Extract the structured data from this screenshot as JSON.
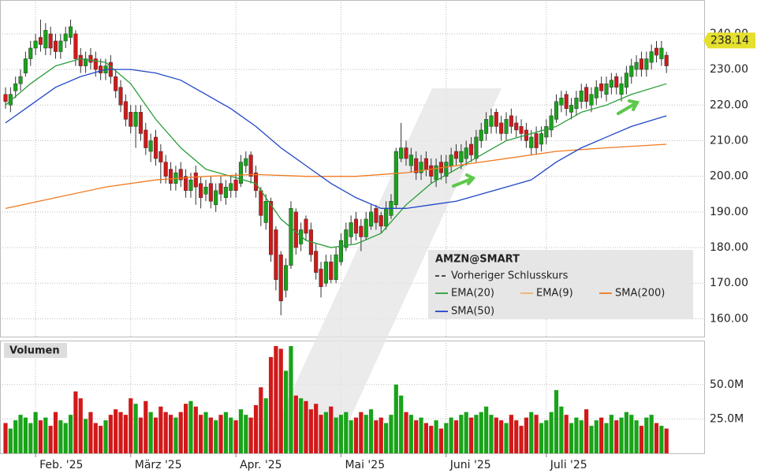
{
  "chart_data": {
    "type": "candlestick",
    "symbol": "AMZN@SMART",
    "last_price": 238.14,
    "up_color": "#19a319",
    "down_color": "#d11919",
    "ylim": [
      155,
      249.5
    ],
    "yticks": [
      {
        "value": 160,
        "label": "160.00"
      },
      {
        "value": 170,
        "label": "170.00"
      },
      {
        "value": 180,
        "label": "180.00"
      },
      {
        "value": 190,
        "label": "190.00"
      },
      {
        "value": 200,
        "label": "200.00"
      },
      {
        "value": 210,
        "label": "210.00"
      },
      {
        "value": 220,
        "label": "220.00"
      },
      {
        "value": 230,
        "label": "230.00"
      },
      {
        "value": 240,
        "label": "240.00"
      }
    ],
    "xticks": [
      {
        "value": 6,
        "label": "Feb. '25"
      },
      {
        "value": 25,
        "label": "März '25"
      },
      {
        "value": 46,
        "label": "Apr. '25"
      },
      {
        "value": 67,
        "label": "Mai '25"
      },
      {
        "value": 88,
        "label": "Juni '25"
      },
      {
        "value": 108,
        "label": "Juli '25"
      }
    ],
    "grid": true,
    "open": [
      223,
      220,
      224,
      226,
      229,
      233,
      236,
      239,
      236,
      240,
      238,
      235,
      238,
      239,
      240,
      234,
      231,
      234,
      233,
      231,
      229,
      232,
      228,
      225,
      221,
      218,
      214,
      218,
      213,
      207,
      211,
      207,
      204,
      202,
      198,
      202,
      200,
      196,
      201,
      198,
      195,
      198,
      192,
      198,
      194,
      196,
      199,
      198,
      203,
      206,
      201,
      196,
      187,
      193,
      185,
      178,
      168,
      175,
      190,
      181,
      188,
      185,
      179,
      174,
      170,
      176,
      171,
      176,
      180,
      183,
      188,
      186,
      183,
      186,
      191,
      189,
      186,
      189,
      192,
      205,
      208,
      203,
      205,
      201,
      205,
      203,
      199,
      204,
      200,
      203,
      207,
      204,
      205,
      209,
      205,
      210,
      212,
      214,
      218,
      215,
      212,
      217,
      215,
      214,
      213,
      208,
      212,
      209,
      211,
      213,
      216,
      220,
      223,
      218,
      219,
      221,
      225,
      220,
      222,
      226,
      223,
      225,
      228,
      223,
      225,
      228,
      230,
      233,
      230,
      232,
      236,
      233,
      234
    ],
    "high": [
      225,
      225,
      228,
      230,
      235,
      238,
      240,
      244,
      243,
      242,
      240,
      240,
      242,
      244,
      241,
      236,
      235,
      236,
      235,
      233,
      233,
      234,
      230,
      227,
      223,
      220,
      220,
      220,
      215,
      212,
      213,
      209,
      206,
      204,
      203,
      204,
      202,
      201,
      203,
      200,
      199,
      200,
      198,
      200,
      199,
      200,
      201,
      206,
      207,
      207,
      203,
      197,
      195,
      194,
      186,
      179,
      177,
      193,
      191,
      187,
      189,
      187,
      181,
      176,
      178,
      178,
      180,
      184,
      187,
      189,
      190,
      188,
      190,
      192,
      192,
      190,
      193,
      195,
      208,
      215,
      210,
      208,
      207,
      206,
      207,
      205,
      205,
      206,
      206,
      208,
      209,
      209,
      210,
      211,
      213,
      215,
      218,
      219,
      219,
      217,
      218,
      219,
      217,
      216,
      215,
      213,
      214,
      214,
      216,
      219,
      223,
      224,
      224,
      222,
      224,
      226,
      226,
      225,
      227,
      228,
      228,
      229,
      229,
      228,
      231,
      233,
      234,
      235,
      235,
      237,
      238,
      238,
      235
    ],
    "low": [
      219,
      218,
      222,
      224,
      228,
      231,
      234,
      235,
      234,
      234,
      233,
      233,
      236,
      237,
      231,
      229,
      229,
      230,
      228,
      227,
      227,
      226,
      222,
      218,
      214,
      212,
      208,
      210,
      206,
      204,
      203,
      198,
      198,
      196,
      196,
      197,
      194,
      194,
      192,
      191,
      193,
      191,
      190,
      193,
      192,
      194,
      194,
      197,
      201,
      198,
      194,
      186,
      185,
      176,
      168,
      161,
      166,
      174,
      178,
      179,
      182,
      176,
      171,
      166,
      169,
      170,
      170,
      175,
      179,
      181,
      182,
      179,
      182,
      185,
      185,
      184,
      185,
      188,
      191,
      204,
      203,
      201,
      199,
      199,
      200,
      198,
      197,
      199,
      198,
      201,
      203,
      202,
      203,
      204,
      204,
      208,
      210,
      212,
      212,
      210,
      210,
      212,
      211,
      210,
      208,
      206,
      206,
      207,
      209,
      211,
      215,
      218,
      217,
      216,
      217,
      219,
      219,
      218,
      220,
      222,
      221,
      223,
      223,
      221,
      223,
      226,
      228,
      228,
      228,
      230,
      232,
      231,
      229
    ],
    "close": [
      221,
      223,
      226,
      228,
      233,
      236,
      238,
      237,
      241,
      236,
      235,
      238,
      240,
      242,
      233,
      231,
      233,
      232,
      230,
      229,
      231,
      228,
      224,
      220,
      216,
      214,
      218,
      212,
      208,
      210,
      205,
      204,
      200,
      198,
      201,
      199,
      196,
      199,
      197,
      194,
      197,
      193,
      196,
      195,
      197,
      198,
      196,
      204,
      205,
      200,
      196,
      189,
      193,
      178,
      171,
      165,
      175,
      191,
      180,
      185,
      184,
      178,
      173,
      169,
      176,
      171,
      178,
      182,
      185,
      187,
      184,
      183,
      188,
      190,
      187,
      186,
      191,
      193,
      207,
      208,
      205,
      206,
      201,
      204,
      202,
      200,
      203,
      201,
      204,
      206,
      205,
      207,
      208,
      206,
      211,
      213,
      216,
      217,
      214,
      212,
      216,
      214,
      213,
      212,
      210,
      211,
      208,
      212,
      214,
      217,
      221,
      222,
      219,
      220,
      222,
      224,
      221,
      223,
      225,
      224,
      226,
      227,
      225,
      226,
      229,
      231,
      232,
      230,
      233,
      235,
      234,
      236,
      231
    ],
    "legend": [
      {
        "name": "Vorheriger Schlusskurs",
        "color": "#333333",
        "dash": true
      },
      {
        "name": "EMA(20)",
        "color": "#2a9d3a",
        "x": [
          0,
          5,
          10,
          15,
          20,
          25,
          30,
          35,
          40,
          45,
          50,
          55,
          60,
          65,
          70,
          75,
          80,
          85,
          90,
          95,
          100,
          105,
          110,
          115,
          120,
          125,
          132
        ],
        "values": [
          220,
          226,
          231,
          233,
          232,
          226,
          216,
          208,
          202,
          200,
          198,
          188,
          182,
          180,
          181,
          184,
          192,
          198,
          202,
          206,
          210,
          212,
          214,
          218,
          220,
          223,
          226
        ]
      },
      {
        "name": "EMA(9)",
        "color": "#f0b070"
      },
      {
        "name": "SMA(200)",
        "color": "#f07a20",
        "x": [
          0,
          10,
          20,
          30,
          40,
          50,
          60,
          70,
          80,
          90,
          100,
          110,
          120,
          132
        ],
        "values": [
          191,
          194,
          197,
          199,
          200,
          200.5,
          200,
          200,
          201,
          203,
          205,
          207,
          208,
          209
        ]
      },
      {
        "name": "SMA(50)",
        "color": "#2146c8",
        "x": [
          0,
          5,
          10,
          15,
          20,
          25,
          30,
          35,
          40,
          45,
          50,
          55,
          60,
          65,
          70,
          75,
          80,
          85,
          90,
          95,
          100,
          105,
          110,
          115,
          120,
          125,
          132
        ],
        "values": [
          215,
          220,
          225,
          228,
          230,
          230,
          229,
          227,
          223,
          219,
          214,
          208,
          203,
          198,
          194,
          191,
          191,
          192,
          193,
          195,
          197,
          199,
          204,
          208,
          211,
          214,
          217
        ]
      }
    ],
    "volume": {
      "title": "Volumen",
      "ylim": [
        0,
        82
      ],
      "yticks": [
        {
          "value": 25,
          "label": "25.0M"
        },
        {
          "value": 50,
          "label": "50.0M"
        }
      ],
      "values": [
        22,
        18,
        24,
        28,
        26,
        22,
        30,
        24,
        26,
        20,
        30,
        24,
        22,
        28,
        45,
        40,
        25,
        30,
        22,
        20,
        24,
        28,
        32,
        30,
        28,
        40,
        36,
        26,
        38,
        30,
        26,
        34,
        30,
        28,
        26,
        30,
        36,
        38,
        34,
        28,
        30,
        26,
        24,
        28,
        30,
        26,
        24,
        32,
        28,
        26,
        35,
        48,
        40,
        70,
        78,
        76,
        60,
        78,
        42,
        40,
        38,
        32,
        36,
        28,
        30,
        34,
        26,
        28,
        30,
        24,
        26,
        30,
        28,
        32,
        24,
        26,
        22,
        28,
        50,
        42,
        30,
        28,
        24,
        26,
        22,
        20,
        24,
        18,
        22,
        26,
        24,
        28,
        30,
        26,
        28,
        30,
        34,
        28,
        26,
        24,
        22,
        28,
        24,
        20,
        26,
        30,
        28,
        22,
        24,
        30,
        46,
        34,
        28,
        22,
        26,
        24,
        32,
        20,
        24,
        26,
        22,
        28,
        24,
        26,
        30,
        28,
        24,
        20,
        26,
        28,
        22,
        20,
        18
      ]
    }
  }
}
